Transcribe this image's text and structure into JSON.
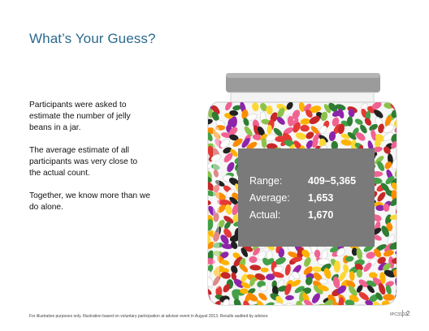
{
  "slide": {
    "title": "What’s Your Guess?",
    "paragraphs": [
      "Participants were asked to estimate the number of jelly beans in a jar.",
      "The average estimate of all participants was very close to the actual count.",
      "Together, we know more than we do alone."
    ],
    "stats": [
      {
        "label": "Range:",
        "value": "409–5,365"
      },
      {
        "label": "Average:",
        "value": "1,653"
      },
      {
        "label": "Actual:",
        "value": "1,670"
      }
    ],
    "footnote": "For illustrative purposes only. Illustration based on voluntary participation at advisor event in August 2013. Results audited by advisor.",
    "code": "IPC3102",
    "page_number": "2"
  },
  "colors": {
    "title": "#2b6a8e",
    "stats_box": "#7a7a7a",
    "lid": "#9b9b9b",
    "beans": [
      "#e53935",
      "#f06292",
      "#fdd835",
      "#43a047",
      "#8bc34a",
      "#fb8c00",
      "#8e24aa",
      "#212121",
      "#ffffff",
      "#c62828",
      "#ffb300",
      "#2e7d32"
    ]
  },
  "images": {
    "jar": "glass jar filled with multicolored jelly beans"
  }
}
